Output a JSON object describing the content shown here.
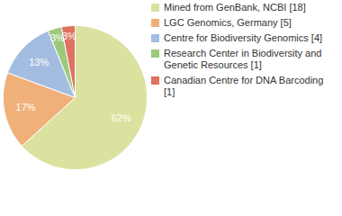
{
  "chart_data": {
    "type": "pie",
    "categories": [
      "Mined from GenBank, NCBI [18]",
      "LGC Genomics, Germany [5]",
      "Centre for Biodiversity Genomics [4]",
      "Research Center in Biodiversity and Genetic Resources [1]",
      "Canadian Centre for DNA Barcoding [1]"
    ],
    "values": [
      62,
      17,
      13,
      3,
      3
    ],
    "value_labels": [
      "62%",
      "17%",
      "13%",
      "3%",
      "3%"
    ],
    "colors": [
      "#dbe29f",
      "#f0b07a",
      "#a3bde0",
      "#9dc97d",
      "#e0705f"
    ],
    "data_labels": true,
    "legend": "right"
  }
}
